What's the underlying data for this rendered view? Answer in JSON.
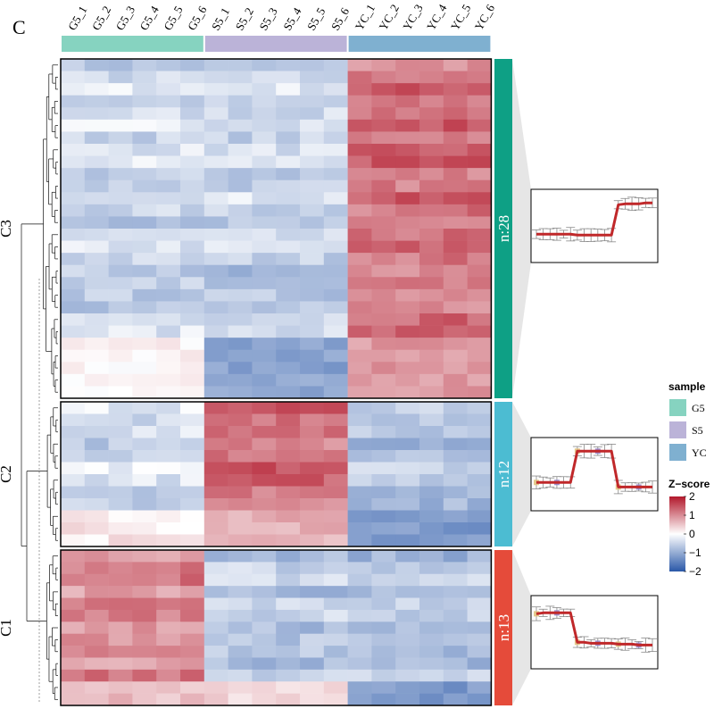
{
  "panel_label": "C",
  "colors": {
    "G5": "#86d3c0",
    "S5": "#bbb3d8",
    "YC": "#7fb0d0",
    "C1": "#e54b3a",
    "C2": "#4cbcd2",
    "C3": "#0ea085",
    "low": "#2a58a8",
    "mid": "#ffffff",
    "high": "#b2182b",
    "line": "#c0282a"
  },
  "chart_data": {
    "type": "heatmap",
    "title": "",
    "columns": [
      "G5_1",
      "G5_2",
      "G5_3",
      "G5_4",
      "G5_5",
      "G5_6",
      "S5_1",
      "S5_2",
      "S5_3",
      "S5_4",
      "S5_5",
      "S5_6",
      "YC_1",
      "YC_2",
      "YC_3",
      "YC_4",
      "YC_5",
      "YC_6"
    ],
    "sample_groups": [
      {
        "name": "G5",
        "count": 6
      },
      {
        "name": "S5",
        "count": 6
      },
      {
        "name": "YC",
        "count": 6
      }
    ],
    "clusters": [
      {
        "name": "C3",
        "label": "n:28",
        "rows": 28,
        "profile": [
          -0.45,
          -0.45,
          -0.45,
          -0.45,
          -0.45,
          -0.45,
          -0.5,
          -0.5,
          -0.5,
          -0.5,
          -0.5,
          -0.5,
          1.15,
          1.2,
          1.2,
          1.2,
          1.25,
          1.25
        ]
      },
      {
        "name": "C2",
        "label": "n:12",
        "rows": 12,
        "profile": [
          -0.45,
          -0.45,
          -0.45,
          -0.45,
          -0.45,
          -0.45,
          1.25,
          1.25,
          1.25,
          1.25,
          1.25,
          1.25,
          -0.7,
          -0.7,
          -0.7,
          -0.7,
          -0.7,
          -0.7
        ]
      },
      {
        "name": "C1",
        "label": "n:13",
        "rows": 13,
        "profile": [
          1.0,
          1.05,
          1.05,
          1.05,
          1.05,
          1.05,
          -0.55,
          -0.55,
          -0.6,
          -0.6,
          -0.6,
          -0.6,
          -0.65,
          -0.65,
          -0.65,
          -0.7,
          -0.7,
          -0.7
        ]
      }
    ],
    "z_range": [
      -2,
      2
    ]
  },
  "legend": {
    "sample_title": "sample",
    "sample_items": [
      "G5",
      "S5",
      "YC"
    ],
    "zscore_title": "Z−score",
    "ticks": [
      "2",
      "1",
      "0",
      "−1",
      "−2"
    ],
    "tick_values": [
      2,
      1,
      0,
      -1,
      -2
    ]
  }
}
